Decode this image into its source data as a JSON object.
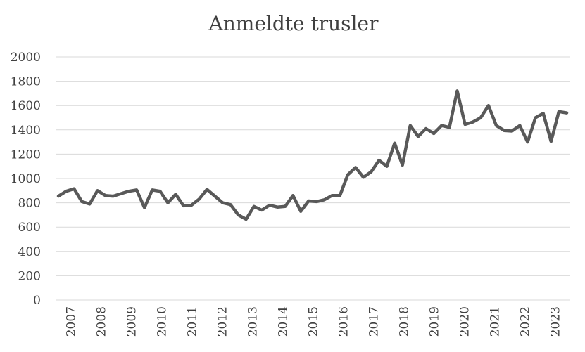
{
  "chart_data": {
    "type": "line",
    "title": "Anmeldte trusler",
    "xlabel": "",
    "ylabel": "",
    "ylim": [
      0,
      2000
    ],
    "yticks": [
      0,
      200,
      400,
      600,
      800,
      1000,
      1200,
      1400,
      1600,
      1800,
      2000
    ],
    "xticks": [
      "2007",
      "2008",
      "2009",
      "2010",
      "2011",
      "2012",
      "2013",
      "2014",
      "2015",
      "2016",
      "2017",
      "2018",
      "2019",
      "2020",
      "2021",
      "2022",
      "2023"
    ],
    "grid": true,
    "legend": "none",
    "color": "#595959",
    "series": [
      {
        "values": [
          855,
          895,
          915,
          810,
          790,
          900,
          860,
          855,
          875,
          895,
          905,
          760,
          905,
          895,
          800,
          870,
          775,
          780,
          830,
          910,
          855,
          800,
          785,
          700,
          665,
          770,
          740,
          780,
          765,
          770,
          860,
          730,
          815,
          810,
          825,
          860,
          860,
          1030,
          1090,
          1010,
          1055,
          1150,
          1100,
          1290,
          1110,
          1435,
          1345,
          1410,
          1370,
          1435,
          1420,
          1720,
          1445,
          1465,
          1500,
          1600,
          1435,
          1395,
          1390,
          1435,
          1300,
          1500,
          1535,
          1305,
          1550,
          1540
        ]
      }
    ]
  }
}
